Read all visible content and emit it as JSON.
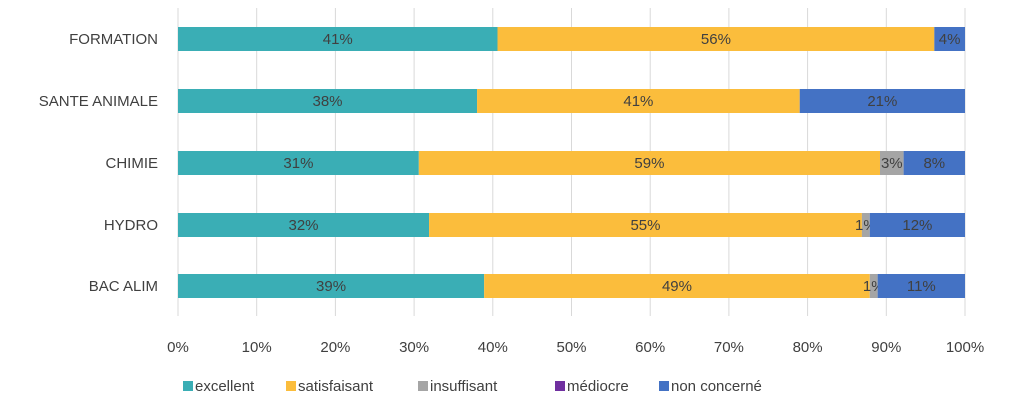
{
  "chart_data": {
    "type": "bar",
    "orientation": "horizontal",
    "stacked": "percent",
    "categories": [
      "FORMATION",
      "SANTE ANIMALE",
      "CHIMIE",
      "HYDRO",
      "BAC ALIM"
    ],
    "series": [
      {
        "name": "excellent",
        "color": "#3aaeb5",
        "values": [
          40.6,
          38.0,
          30.6,
          31.9,
          38.9
        ],
        "labels": [
          "41%",
          "38%",
          "31%",
          "32%",
          "39%"
        ]
      },
      {
        "name": "satisfaisant",
        "color": "#fbbd3c",
        "values": [
          55.5,
          41.0,
          58.6,
          55.0,
          49.0
        ],
        "labels": [
          "56%",
          "41%",
          "59%",
          "55%",
          "49%"
        ]
      },
      {
        "name": "insuffisant",
        "color": "#a5a5a5",
        "values": [
          0,
          0,
          3.0,
          1.0,
          1.0
        ],
        "labels": [
          "",
          "",
          "3%",
          "1%",
          "1%"
        ]
      },
      {
        "name": "médiocre",
        "color": "#7030a0",
        "values": [
          0,
          0,
          0,
          0,
          0
        ],
        "labels": [
          "",
          "",
          "",
          "",
          ""
        ]
      },
      {
        "name": "non concerné",
        "color": "#4472c4",
        "values": [
          3.9,
          21.0,
          7.8,
          12.1,
          11.1
        ],
        "labels": [
          "4%",
          "21%",
          "8%",
          "12%",
          "11%"
        ]
      }
    ],
    "xticks": [
      "0%",
      "10%",
      "20%",
      "30%",
      "40%",
      "50%",
      "60%",
      "70%",
      "80%",
      "90%",
      "100%"
    ],
    "xlim": [
      0,
      100
    ],
    "grid": "vertical",
    "legend": "bottom",
    "title": "",
    "xlabel": "",
    "ylabel": ""
  }
}
